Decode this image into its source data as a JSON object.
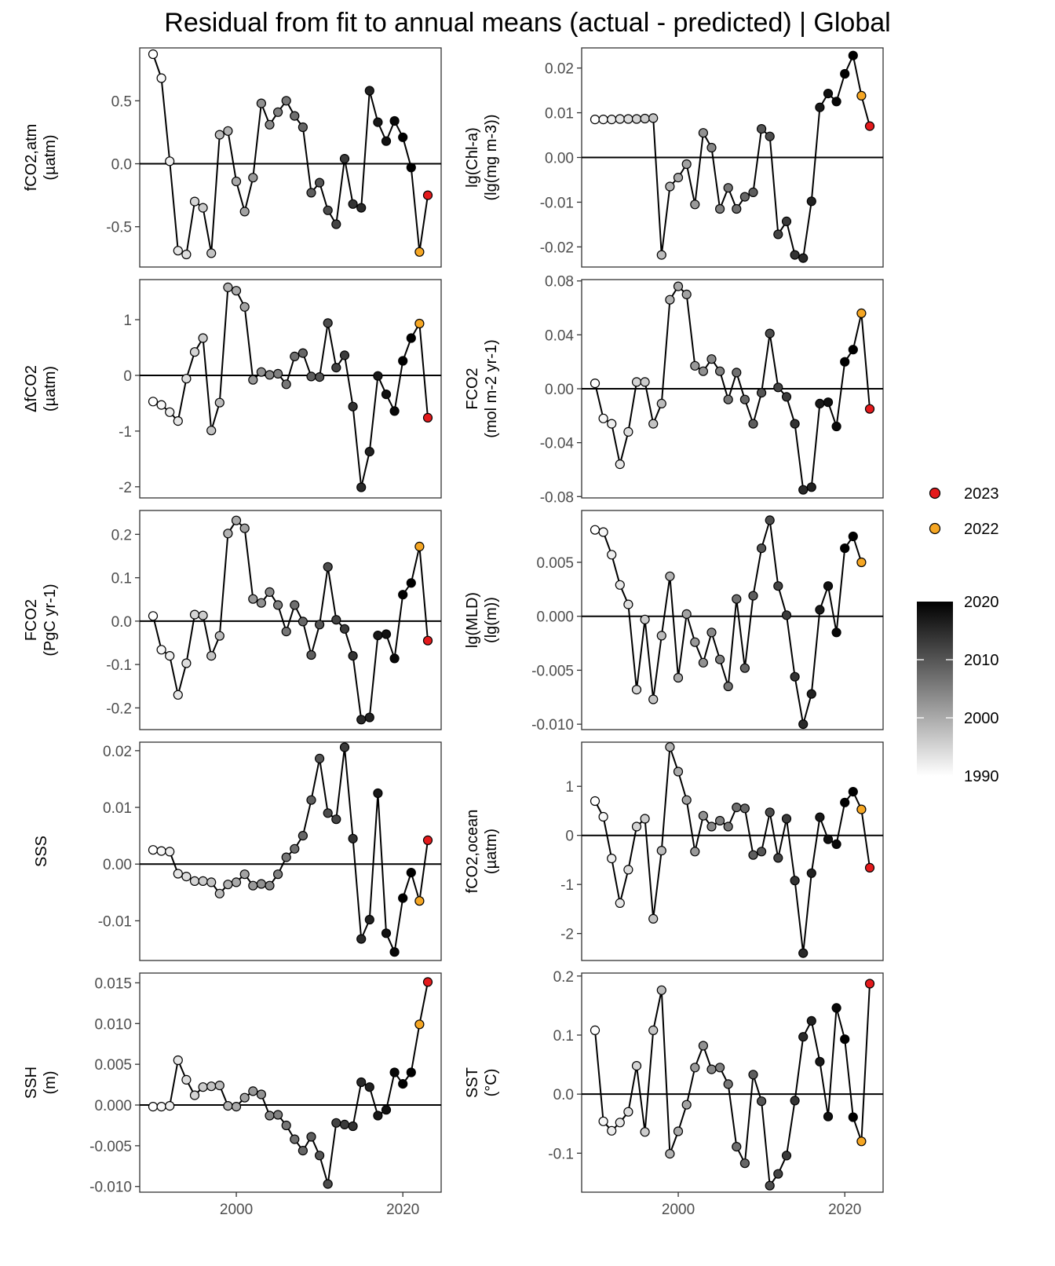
{
  "title": "Residual from fit to annual means (actual - predicted) | Global",
  "colors": {
    "year_2023": "#e41a1c",
    "year_2022": "#f5a623",
    "line": "#000000",
    "gradient_low": "#ffffff",
    "gradient_high": "#000000"
  },
  "legend": {
    "highlight": [
      {
        "label": "2023",
        "color": "#e41a1c"
      },
      {
        "label": "2022",
        "color": "#f5a623"
      }
    ],
    "gradient_ticks": [
      "2020",
      "2010",
      "2000",
      "1990"
    ],
    "gradient_range": [
      1990,
      2020
    ]
  },
  "x_ticks": [
    "2000",
    "2020"
  ],
  "chart_data": [
    {
      "type": "line",
      "ylabel": [
        "fCO2,atm",
        "(µatm)"
      ],
      "ylim": [
        -0.82,
        0.92
      ],
      "yticks": [
        {
          "value": 0.5,
          "label": "0.5"
        },
        {
          "value": 0.0,
          "label": "0.0"
        },
        {
          "value": -0.5,
          "label": "-0.5"
        }
      ],
      "x": [
        1990,
        1991,
        1992,
        1993,
        1994,
        1995,
        1996,
        1997,
        1998,
        1999,
        2000,
        2001,
        2002,
        2003,
        2004,
        2005,
        2006,
        2007,
        2008,
        2009,
        2010,
        2011,
        2012,
        2013,
        2014,
        2015,
        2016,
        2017,
        2018,
        2019,
        2020,
        2021,
        2022,
        2023
      ],
      "values": [
        0.87,
        0.68,
        0.02,
        -0.69,
        -0.72,
        -0.3,
        -0.35,
        -0.71,
        0.23,
        0.26,
        -0.14,
        -0.38,
        -0.11,
        0.48,
        0.31,
        0.41,
        0.5,
        0.38,
        0.29,
        -0.23,
        -0.15,
        -0.37,
        -0.48,
        0.04,
        -0.32,
        -0.35,
        0.58,
        0.33,
        0.18,
        0.34,
        0.21,
        -0.03,
        -0.7,
        -0.25
      ]
    },
    {
      "type": "line",
      "ylabel": [
        "lg(Chl-a)",
        "(lg(mg m-3))"
      ],
      "ylim": [
        -0.0245,
        0.0245
      ],
      "yticks": [
        {
          "value": 0.02,
          "label": "0.02"
        },
        {
          "value": 0.01,
          "label": "0.01"
        },
        {
          "value": 0.0,
          "label": "0.00"
        },
        {
          "value": -0.01,
          "label": "-0.01"
        },
        {
          "value": -0.02,
          "label": "-0.02"
        }
      ],
      "x": [
        1990,
        1991,
        1992,
        1993,
        1994,
        1995,
        1996,
        1997,
        1998,
        1999,
        2000,
        2001,
        2002,
        2003,
        2004,
        2005,
        2006,
        2007,
        2008,
        2009,
        2010,
        2011,
        2012,
        2013,
        2014,
        2015,
        2016,
        2017,
        2018,
        2019,
        2020,
        2021,
        2022,
        2023
      ],
      "values": [
        0.0085,
        0.0085,
        0.0085,
        0.0086,
        0.0086,
        0.0086,
        0.0087,
        0.0088,
        -0.0218,
        -0.0065,
        -0.0045,
        -0.0015,
        -0.0105,
        0.0055,
        0.0022,
        -0.0115,
        -0.0068,
        -0.0115,
        -0.0088,
        -0.0078,
        0.0064,
        0.0047,
        -0.0172,
        -0.0143,
        -0.0218,
        -0.0225,
        -0.0098,
        0.0112,
        0.0143,
        0.0125,
        0.0187,
        0.0228,
        0.0138,
        0.007
      ]
    },
    {
      "type": "line",
      "ylabel": [
        "ΔfCO2",
        "(µatm)"
      ],
      "ylim": [
        -2.2,
        1.72
      ],
      "yticks": [
        {
          "value": 1,
          "label": "1"
        },
        {
          "value": 0,
          "label": "0"
        },
        {
          "value": -1,
          "label": "-1"
        },
        {
          "value": -2,
          "label": "-2"
        }
      ],
      "x": [
        1990,
        1991,
        1992,
        1993,
        1994,
        1995,
        1996,
        1997,
        1998,
        1999,
        2000,
        2001,
        2002,
        2003,
        2004,
        2005,
        2006,
        2007,
        2008,
        2009,
        2010,
        2011,
        2012,
        2013,
        2014,
        2015,
        2016,
        2017,
        2018,
        2019,
        2020,
        2021,
        2022,
        2023
      ],
      "values": [
        -0.47,
        -0.53,
        -0.66,
        -0.82,
        -0.06,
        0.42,
        0.67,
        -0.99,
        -0.49,
        1.58,
        1.52,
        1.23,
        -0.08,
        0.06,
        0.01,
        0.03,
        -0.16,
        0.34,
        0.4,
        -0.02,
        -0.03,
        0.94,
        0.14,
        0.36,
        -0.56,
        -2.01,
        -1.37,
        -0.01,
        -0.34,
        -0.64,
        0.26,
        0.67,
        0.93,
        -0.76
      ]
    },
    {
      "type": "line",
      "ylabel": [
        "FCO2",
        "(mol m-2 yr-1)"
      ],
      "ylim": [
        -0.081,
        0.081
      ],
      "yticks": [
        {
          "value": 0.08,
          "label": "0.08"
        },
        {
          "value": 0.04,
          "label": "0.04"
        },
        {
          "value": 0.0,
          "label": "0.00"
        },
        {
          "value": -0.04,
          "label": "-0.04"
        },
        {
          "value": -0.08,
          "label": "-0.08"
        }
      ],
      "x": [
        1990,
        1991,
        1992,
        1993,
        1994,
        1995,
        1996,
        1997,
        1998,
        1999,
        2000,
        2001,
        2002,
        2003,
        2004,
        2005,
        2006,
        2007,
        2008,
        2009,
        2010,
        2011,
        2012,
        2013,
        2014,
        2015,
        2016,
        2017,
        2018,
        2019,
        2020,
        2021,
        2022,
        2023
      ],
      "values": [
        0.004,
        -0.022,
        -0.026,
        -0.056,
        -0.032,
        0.005,
        0.005,
        -0.026,
        -0.011,
        0.066,
        0.076,
        0.07,
        0.017,
        0.013,
        0.022,
        0.013,
        -0.008,
        0.012,
        -0.008,
        -0.026,
        -0.003,
        0.041,
        0.001,
        -0.006,
        -0.026,
        -0.075,
        -0.073,
        -0.011,
        -0.01,
        -0.028,
        0.02,
        0.029,
        0.056,
        -0.015
      ]
    },
    {
      "type": "line",
      "ylabel": [
        "FCO2",
        "(PgC yr-1)"
      ],
      "ylim": [
        -0.25,
        0.255
      ],
      "yticks": [
        {
          "value": 0.2,
          "label": "0.2"
        },
        {
          "value": 0.1,
          "label": "0.1"
        },
        {
          "value": 0.0,
          "label": "0.0"
        },
        {
          "value": -0.1,
          "label": "-0.1"
        },
        {
          "value": -0.2,
          "label": "-0.2"
        }
      ],
      "x": [
        1990,
        1991,
        1992,
        1993,
        1994,
        1995,
        1996,
        1997,
        1998,
        1999,
        2000,
        2001,
        2002,
        2003,
        2004,
        2005,
        2006,
        2007,
        2008,
        2009,
        2010,
        2011,
        2012,
        2013,
        2014,
        2015,
        2016,
        2017,
        2018,
        2019,
        2020,
        2021,
        2022,
        2023
      ],
      "values": [
        0.012,
        -0.066,
        -0.08,
        -0.17,
        -0.097,
        0.015,
        0.013,
        -0.08,
        -0.034,
        0.202,
        0.232,
        0.214,
        0.051,
        0.042,
        0.067,
        0.037,
        -0.024,
        0.037,
        -0.001,
        -0.078,
        -0.008,
        0.125,
        0.003,
        -0.018,
        -0.08,
        -0.227,
        -0.222,
        -0.033,
        -0.03,
        -0.086,
        0.061,
        0.088,
        0.172,
        -0.045
      ]
    },
    {
      "type": "line",
      "ylabel": [
        "lg(MLD)",
        "(lg(m))"
      ],
      "ylim": [
        -0.0105,
        0.0098
      ],
      "yticks": [
        {
          "value": 0.005,
          "label": "0.005"
        },
        {
          "value": 0.0,
          "label": "0.000"
        },
        {
          "value": -0.005,
          "label": "-0.005"
        },
        {
          "value": -0.01,
          "label": "-0.010"
        }
      ],
      "x": [
        1990,
        1991,
        1992,
        1993,
        1994,
        1995,
        1996,
        1997,
        1998,
        1999,
        2000,
        2001,
        2002,
        2003,
        2004,
        2005,
        2006,
        2007,
        2008,
        2009,
        2010,
        2011,
        2012,
        2013,
        2014,
        2015,
        2016,
        2017,
        2018,
        2019,
        2020,
        2021,
        2022,
        2023
      ],
      "values": [
        0.008,
        0.0078,
        0.0057,
        0.0029,
        0.0011,
        -0.0068,
        -0.0003,
        -0.0077,
        -0.0018,
        0.0037,
        -0.0057,
        0.0002,
        -0.0024,
        -0.0043,
        -0.0015,
        -0.004,
        -0.0065,
        0.0016,
        -0.0048,
        0.0019,
        0.0063,
        0.0089,
        0.0028,
        0.0001,
        -0.0056,
        -0.01,
        -0.0072,
        0.0006,
        0.0028,
        -0.0015,
        0.0063,
        0.0074,
        0.005,
        null
      ]
    },
    {
      "type": "line",
      "ylabel": [
        "SSS",
        ""
      ],
      "ylim": [
        -0.017,
        0.0215
      ],
      "yticks": [
        {
          "value": 0.02,
          "label": "0.02"
        },
        {
          "value": 0.01,
          "label": "0.01"
        },
        {
          "value": 0.0,
          "label": "0.00"
        },
        {
          "value": -0.01,
          "label": "-0.01"
        }
      ],
      "x": [
        1990,
        1991,
        1992,
        1993,
        1994,
        1995,
        1996,
        1997,
        1998,
        1999,
        2000,
        2001,
        2002,
        2003,
        2004,
        2005,
        2006,
        2007,
        2008,
        2009,
        2010,
        2011,
        2012,
        2013,
        2014,
        2015,
        2016,
        2017,
        2018,
        2019,
        2020,
        2021,
        2022,
        2023
      ],
      "values": [
        0.0025,
        0.0023,
        0.0022,
        -0.0017,
        -0.0022,
        -0.003,
        -0.003,
        -0.0032,
        -0.0052,
        -0.0036,
        -0.0032,
        -0.0018,
        -0.0038,
        -0.0035,
        -0.0038,
        -0.0018,
        0.0012,
        0.0027,
        0.005,
        0.0113,
        0.0186,
        0.009,
        0.0079,
        0.0206,
        0.0045,
        -0.0132,
        -0.0098,
        0.0125,
        -0.0122,
        -0.0155,
        -0.006,
        -0.0015,
        -0.0065,
        0.0042
      ]
    },
    {
      "type": "line",
      "ylabel": [
        "fCO2,ocean",
        "(µatm)"
      ],
      "ylim": [
        -2.55,
        1.9
      ],
      "yticks": [
        {
          "value": 1,
          "label": "1"
        },
        {
          "value": 0,
          "label": "0"
        },
        {
          "value": -1,
          "label": "-1"
        },
        {
          "value": -2,
          "label": "-2"
        }
      ],
      "x": [
        1990,
        1991,
        1992,
        1993,
        1994,
        1995,
        1996,
        1997,
        1998,
        1999,
        2000,
        2001,
        2002,
        2003,
        2004,
        2005,
        2006,
        2007,
        2008,
        2009,
        2010,
        2011,
        2012,
        2013,
        2014,
        2015,
        2016,
        2017,
        2018,
        2019,
        2020,
        2021,
        2022,
        2023
      ],
      "values": [
        0.7,
        0.38,
        -0.47,
        -1.38,
        -0.7,
        0.18,
        0.34,
        -1.7,
        -0.31,
        1.8,
        1.3,
        0.72,
        -0.33,
        0.4,
        0.18,
        0.3,
        0.18,
        0.57,
        0.55,
        -0.4,
        -0.33,
        0.47,
        -0.46,
        0.34,
        -0.92,
        -2.4,
        -0.77,
        0.37,
        -0.08,
        -0.18,
        0.67,
        0.89,
        0.53,
        -0.66
      ]
    },
    {
      "type": "line",
      "ylabel": [
        "SSH",
        "(m)"
      ],
      "ylim": [
        -0.0107,
        0.0162
      ],
      "yticks": [
        {
          "value": 0.015,
          "label": "0.015"
        },
        {
          "value": 0.01,
          "label": "0.010"
        },
        {
          "value": 0.005,
          "label": "0.005"
        },
        {
          "value": 0.0,
          "label": "0.000"
        },
        {
          "value": -0.005,
          "label": "-0.005"
        },
        {
          "value": -0.01,
          "label": "-0.010"
        }
      ],
      "x": [
        1990,
        1991,
        1992,
        1993,
        1994,
        1995,
        1996,
        1997,
        1998,
        1999,
        2000,
        2001,
        2002,
        2003,
        2004,
        2005,
        2006,
        2007,
        2008,
        2009,
        2010,
        2011,
        2012,
        2013,
        2014,
        2015,
        2016,
        2017,
        2018,
        2019,
        2020,
        2021,
        2022,
        2023
      ],
      "values": [
        -0.0002,
        -0.0002,
        -0.0001,
        0.0055,
        0.0031,
        0.0012,
        0.0022,
        0.0023,
        0.0024,
        -0.0001,
        -0.0002,
        0.0009,
        0.0017,
        0.0013,
        -0.0013,
        -0.0012,
        -0.0025,
        -0.0042,
        -0.0056,
        -0.0039,
        -0.0062,
        -0.0097,
        -0.0022,
        -0.0024,
        -0.0026,
        0.0028,
        0.0022,
        -0.0013,
        -0.0006,
        0.004,
        0.0026,
        0.004,
        0.0099,
        0.0151
      ]
    },
    {
      "type": "line",
      "ylabel": [
        "SST",
        "(°C)"
      ],
      "ylim": [
        -0.166,
        0.205
      ],
      "yticks": [
        {
          "value": 0.2,
          "label": "0.2"
        },
        {
          "value": 0.1,
          "label": "0.1"
        },
        {
          "value": 0.0,
          "label": "0.0"
        },
        {
          "value": -0.1,
          "label": "-0.1"
        }
      ],
      "x": [
        1990,
        1991,
        1992,
        1993,
        1994,
        1995,
        1996,
        1997,
        1998,
        1999,
        2000,
        2001,
        2002,
        2003,
        2004,
        2005,
        2006,
        2007,
        2008,
        2009,
        2010,
        2011,
        2012,
        2013,
        2014,
        2015,
        2016,
        2017,
        2018,
        2019,
        2020,
        2021,
        2022,
        2023
      ],
      "values": [
        0.108,
        -0.046,
        -0.062,
        -0.048,
        -0.03,
        0.048,
        -0.064,
        0.108,
        0.176,
        -0.101,
        -0.063,
        -0.018,
        0.045,
        0.082,
        0.042,
        0.045,
        0.017,
        -0.089,
        -0.117,
        0.033,
        -0.012,
        -0.155,
        -0.135,
        -0.104,
        -0.011,
        0.097,
        0.124,
        0.055,
        -0.038,
        0.146,
        0.093,
        -0.039,
        -0.08,
        0.187
      ]
    }
  ]
}
